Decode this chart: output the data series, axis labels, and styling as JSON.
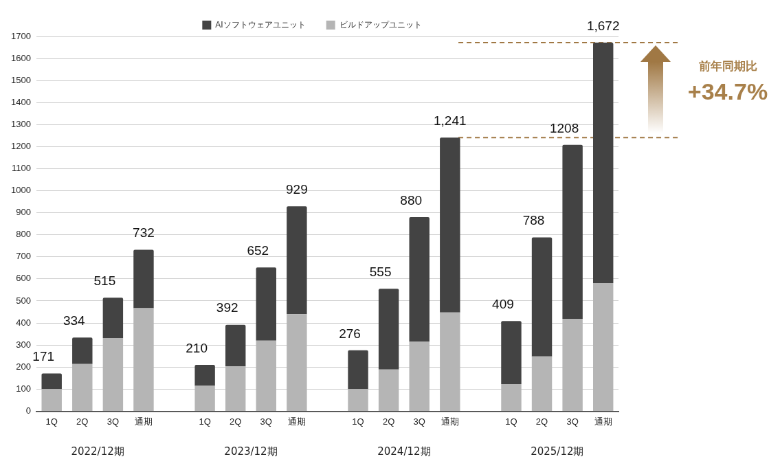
{
  "chart_data": {
    "type": "bar",
    "stacked": true,
    "categories": [
      "1Q",
      "2Q",
      "3Q",
      "通期",
      null,
      "1Q",
      "2Q",
      "3Q",
      "通期",
      null,
      "1Q",
      "2Q",
      "3Q",
      "通期",
      null,
      "1Q",
      "2Q",
      "3Q",
      "通期"
    ],
    "series": [
      {
        "name": "ビルドアップユニット",
        "color": "#b5b5b5",
        "values": [
          100,
          214,
          332,
          467,
          null,
          115,
          203,
          320,
          440,
          null,
          100,
          189,
          315,
          448,
          null,
          123,
          248,
          419,
          581
        ]
      },
      {
        "name": "AIソフトウェアユニット",
        "color": "#434343",
        "values": [
          71,
          120,
          183,
          265,
          null,
          95,
          189,
          332,
          489,
          null,
          176,
          366,
          565,
          793,
          null,
          286,
          540,
          789,
          1091
        ]
      }
    ],
    "totals": [
      "171",
      "334",
      "515",
      "732",
      null,
      "210",
      "392",
      "652",
      "929",
      null,
      "276",
      "555",
      "880",
      "1,241",
      null,
      "409",
      "788",
      "1208",
      "1,672"
    ],
    "ylim": [
      0,
      1700
    ],
    "yticks": [
      0,
      100,
      200,
      300,
      400,
      500,
      600,
      700,
      800,
      900,
      1000,
      1100,
      1200,
      1300,
      1400,
      1500,
      1600,
      1700
    ],
    "grid": "y",
    "legend": "top",
    "ref_lines": [
      {
        "axis": "y",
        "value": 1241,
        "color": "#a07844",
        "line_style": "dashed"
      },
      {
        "axis": "y",
        "value": 1672,
        "color": "#a07844",
        "line_style": "dashed"
      }
    ],
    "annotations": [
      "2022/12期",
      "2023/12期",
      "2024/12期",
      "2025/12期",
      "前年同期比",
      "+34.7%"
    ]
  }
}
